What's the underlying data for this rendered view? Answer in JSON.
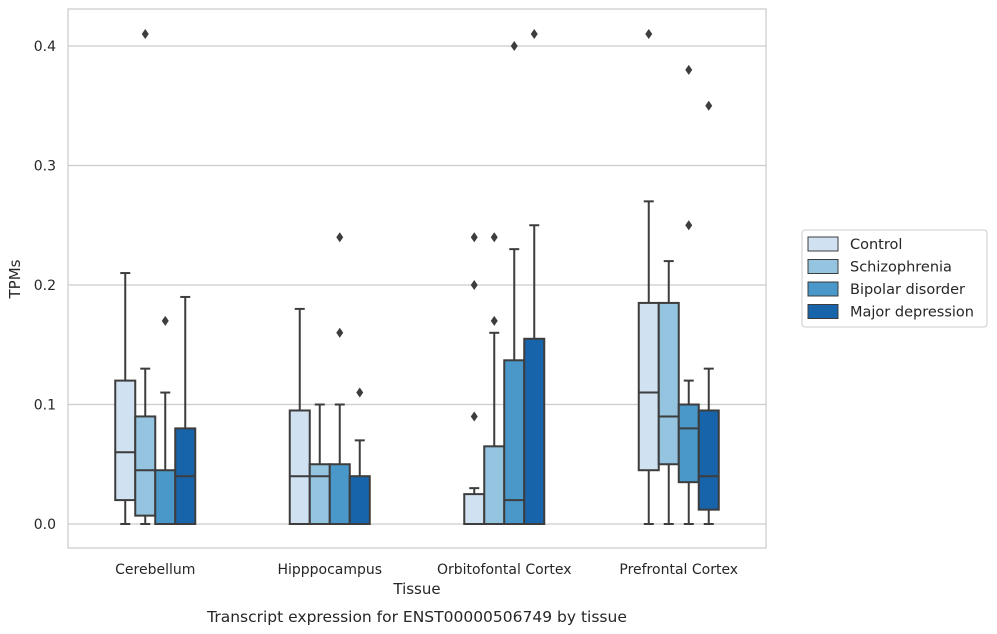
{
  "chart_data": {
    "type": "boxplot",
    "title": "",
    "caption": "Transcript expression for ENST00000506749 by tissue",
    "xlabel": "Tissue",
    "ylabel": "TPMs",
    "ylim": [
      -0.02,
      0.43
    ],
    "yticks": [
      "0.0",
      "0.1",
      "0.2",
      "0.3",
      "0.4"
    ],
    "grid": "horizontal",
    "legend_position": "right",
    "categories": [
      "Cerebellum",
      "Hipppocampus",
      "Orbitofontal Cortex",
      "Prefrontal Cortex"
    ],
    "series": [
      {
        "name": "Control",
        "color": "#d0e1f2",
        "boxes": [
          {
            "min": 0.0,
            "q1": 0.02,
            "median": 0.06,
            "q3": 0.12,
            "max": 0.21,
            "outliers": []
          },
          {
            "min": 0.0,
            "q1": 0.0,
            "median": 0.04,
            "q3": 0.095,
            "max": 0.18,
            "outliers": []
          },
          {
            "min": 0.0,
            "q1": 0.0,
            "median": 0.0,
            "q3": 0.025,
            "max": 0.03,
            "outliers": [
              0.09,
              0.2,
              0.24
            ]
          },
          {
            "min": 0.0,
            "q1": 0.045,
            "median": 0.11,
            "q3": 0.185,
            "max": 0.27,
            "outliers": [
              0.41
            ]
          }
        ]
      },
      {
        "name": "Schizophrenia",
        "color": "#94c4df",
        "boxes": [
          {
            "min": 0.0,
            "q1": 0.007,
            "median": 0.045,
            "q3": 0.09,
            "max": 0.13,
            "outliers": [
              0.41
            ]
          },
          {
            "min": 0.0,
            "q1": 0.0,
            "median": 0.04,
            "q3": 0.05,
            "max": 0.1,
            "outliers": []
          },
          {
            "min": 0.0,
            "q1": 0.0,
            "median": 0.0,
            "q3": 0.065,
            "max": 0.16,
            "outliers": [
              0.17,
              0.24
            ]
          },
          {
            "min": 0.0,
            "q1": 0.05,
            "median": 0.09,
            "q3": 0.185,
            "max": 0.22,
            "outliers": []
          }
        ]
      },
      {
        "name": "Bipolar disorder",
        "color": "#4a98c9",
        "boxes": [
          {
            "min": 0.0,
            "q1": 0.0,
            "median": 0.0,
            "q3": 0.045,
            "max": 0.11,
            "outliers": [
              0.17
            ]
          },
          {
            "min": 0.0,
            "q1": 0.0,
            "median": 0.0,
            "q3": 0.05,
            "max": 0.1,
            "outliers": [
              0.16,
              0.24
            ]
          },
          {
            "min": 0.0,
            "q1": 0.0,
            "median": 0.02,
            "q3": 0.137,
            "max": 0.23,
            "outliers": [
              0.4
            ]
          },
          {
            "min": 0.0,
            "q1": 0.035,
            "median": 0.08,
            "q3": 0.1,
            "max": 0.12,
            "outliers": [
              0.25,
              0.38
            ]
          }
        ]
      },
      {
        "name": "Major depression",
        "color": "#1764ab",
        "boxes": [
          {
            "min": 0.0,
            "q1": 0.0,
            "median": 0.04,
            "q3": 0.08,
            "max": 0.19,
            "outliers": []
          },
          {
            "min": 0.0,
            "q1": 0.0,
            "median": 0.0,
            "q3": 0.04,
            "max": 0.07,
            "outliers": [
              0.11
            ]
          },
          {
            "min": 0.0,
            "q1": 0.0,
            "median": 0.0,
            "q3": 0.155,
            "max": 0.25,
            "outliers": [
              0.41
            ]
          },
          {
            "min": 0.0,
            "q1": 0.012,
            "median": 0.04,
            "q3": 0.095,
            "max": 0.13,
            "outliers": [
              0.35
            ]
          }
        ]
      }
    ]
  }
}
